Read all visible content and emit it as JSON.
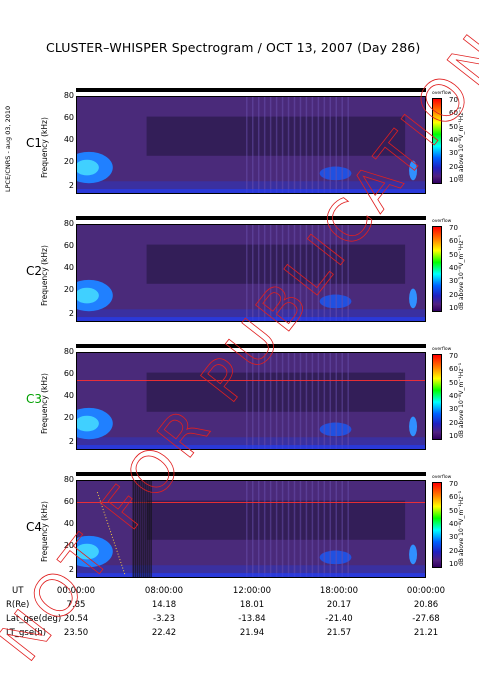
{
  "title": "CLUSTER–WHISPER Spectrogram / OCT 13, 2007 (Day 286)",
  "side_label": "LPCE/CNRS - aug 03, 2010",
  "stamp_text": "NOT FOR PUBLICATION",
  "colors": {
    "stamp": "#e02020",
    "bg_spectrum": "#4a2a7a",
    "c3_label": "#00a000"
  },
  "chart_data": {
    "type": "heatmap",
    "title": "CLUSTER–WHISPER Spectrogram / OCT 13, 2007 (Day 286)",
    "ylabel": "Frequency (kHz)",
    "yticks": [
      "80",
      "60",
      "40",
      "20",
      "2"
    ],
    "ylim": [
      2,
      80
    ],
    "colorbar": {
      "label": "dB above 10⁻⁸V_m⁻¹Hz⁻¹",
      "ticks": [
        "70",
        "60",
        "50",
        "40",
        "30",
        "20",
        "10"
      ],
      "overflow_label": "overflow",
      "range": [
        10,
        70
      ]
    },
    "panels": [
      {
        "name": "C1",
        "label_color": "#000"
      },
      {
        "name": "C2",
        "label_color": "#000"
      },
      {
        "name": "C3",
        "label_color": "#00a000"
      },
      {
        "name": "C4",
        "label_color": "#000"
      }
    ],
    "x_label": "UT",
    "xticks": [
      "00:00:00",
      "08:00:00",
      "12:00:00",
      "18:00:00",
      "00:00:00"
    ],
    "orbit_rows": [
      {
        "label": "R(Re)",
        "values": [
          "7.85",
          "14.18",
          "18.01",
          "20.17",
          "20.86"
        ]
      },
      {
        "label": "Lat_gse(deg)",
        "values": [
          "20.54",
          "-3.23",
          "-13.84",
          "-21.40",
          "-27.68"
        ]
      },
      {
        "label": "LT_gse(h)",
        "values": [
          "23.50",
          "22.42",
          "21.94",
          "21.57",
          "21.21"
        ]
      }
    ]
  }
}
